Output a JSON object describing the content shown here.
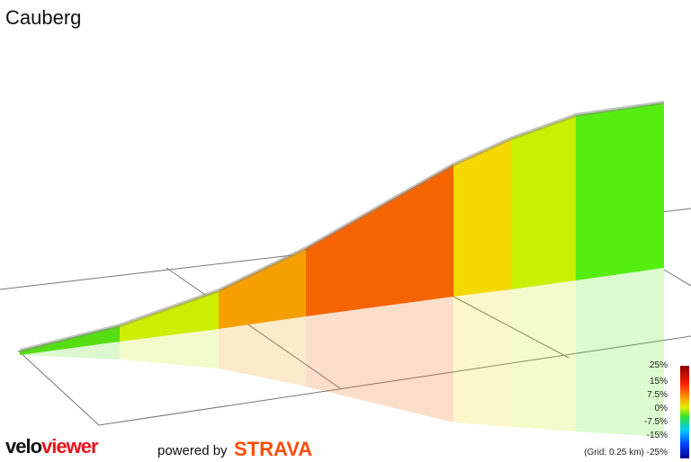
{
  "header": {
    "title": "Cauberg"
  },
  "legend": {
    "labels": [
      "25%",
      "15%",
      "7.5%",
      "0%",
      "-7.5%",
      "-15%"
    ],
    "grid_note": "(Grid: 0.25 km)",
    "last_label": "-25%"
  },
  "footer": {
    "logo_part1": "velo",
    "logo_part2": "viewer",
    "powered": "powered by",
    "brand": "STRAVA"
  }
}
